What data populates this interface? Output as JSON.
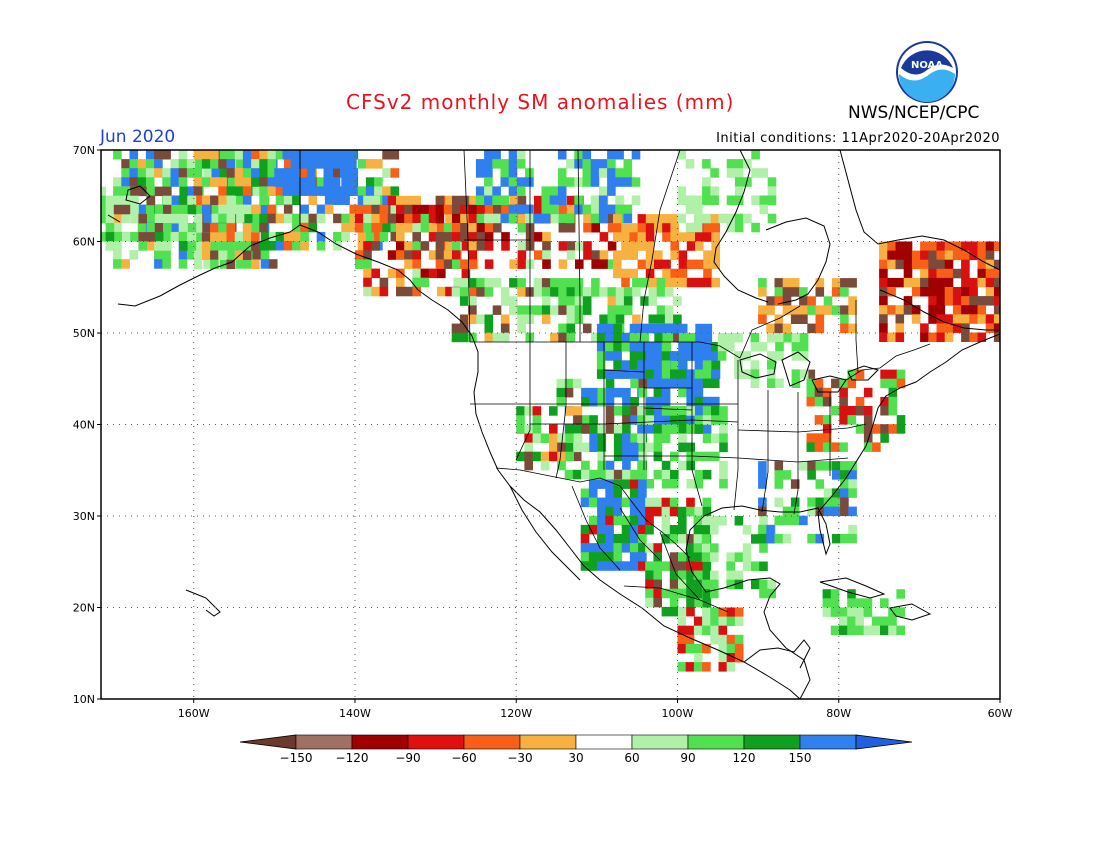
{
  "header": {
    "title": "CFSv2 monthly SM anomalies (mm)",
    "agency": "NWS/NCEP/CPC",
    "month": "Jun 2020",
    "initial_conditions": "Initial conditions: 11Apr2020-20Apr2020",
    "logo_text": "NOAA"
  },
  "axes": {
    "lat_labels": [
      "70N",
      "60N",
      "50N",
      "40N",
      "30N",
      "20N",
      "10N"
    ],
    "lon_labels": [
      "160W",
      "140W",
      "120W",
      "100W",
      "80W",
      "60W"
    ]
  },
  "colorbar": {
    "labels": [
      "−150",
      "−120",
      "−90",
      "−60",
      "−30",
      "30",
      "60",
      "90",
      "120",
      "150"
    ],
    "colors": [
      "#6b3a2a",
      "#a07060",
      "#a00000",
      "#e01010",
      "#f86018",
      "#f8b040",
      "#ffffff",
      "#b0f0a8",
      "#50e050",
      "#10a020",
      "#3080f0",
      "#2060e0"
    ]
  },
  "colors": {
    "wet_strong": "#2f7fef",
    "wet_mid": "#10a020",
    "wet_light": "#50e050",
    "wet_pale": "#b0f0a8",
    "dry_pale": "#f8b040",
    "dry_mid": "#f86018",
    "dry_strong": "#d81010",
    "dry_deep": "#a00000",
    "dry_brown": "#7a4a3a"
  }
}
